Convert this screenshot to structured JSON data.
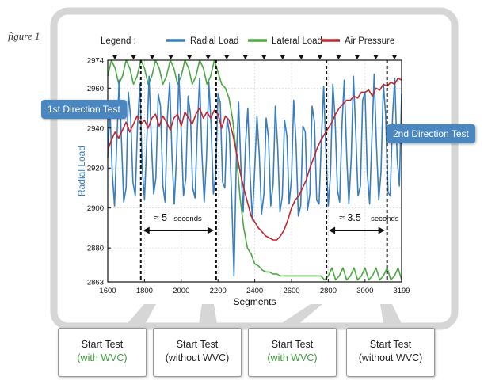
{
  "figure_label": "figure 1",
  "legend_title": "Legend :",
  "callouts": {
    "left": "1st Direction Test",
    "right": "2nd Direction Test"
  },
  "bottom_boxes": [
    {
      "line1": "Start Test",
      "line2": "(with WVC)",
      "variant": "green"
    },
    {
      "line1": "Start Test",
      "line2": "(without WVC)",
      "variant": "dark"
    },
    {
      "line1": "Start Test",
      "line2": "(with WVC)",
      "variant": "green"
    },
    {
      "line1": "Start Test",
      "line2": "(without WVC)",
      "variant": "dark"
    }
  ],
  "colors": {
    "radial": "#3a7ec0",
    "lateral": "#4ba843",
    "air": "#c2272d",
    "frame": "#d6d6d6"
  },
  "chart_data": {
    "type": "line",
    "xlabel": "Segments",
    "ylabel": "Radial Load",
    "xlim": [
      1600,
      3199
    ],
    "ylim": [
      2863,
      2974
    ],
    "x_ticks": [
      1600,
      1800,
      2000,
      2200,
      2400,
      2600,
      2800,
      3000,
      3199
    ],
    "y_ticks": [
      2863,
      2880,
      2900,
      2920,
      2940,
      2960,
      2974
    ],
    "legend_position": "top",
    "grid": true,
    "series": [
      {
        "name": "Radial Load",
        "color": "#3a7ec0",
        "x": [
          1600,
          1612,
          1625,
          1637,
          1650,
          1662,
          1675,
          1687,
          1700,
          1712,
          1725,
          1737,
          1750,
          1762,
          1775,
          1787,
          1800,
          1812,
          1825,
          1837,
          1850,
          1862,
          1875,
          1887,
          1900,
          1912,
          1925,
          1937,
          1950,
          1962,
          1975,
          1987,
          2000,
          2012,
          2025,
          2037,
          2050,
          2062,
          2075,
          2087,
          2100,
          2112,
          2125,
          2137,
          2150,
          2162,
          2175,
          2187,
          2200,
          2212,
          2225,
          2237,
          2250,
          2262,
          2275,
          2287,
          2300,
          2312,
          2325,
          2337,
          2350,
          2362,
          2375,
          2387,
          2400,
          2412,
          2425,
          2437,
          2450,
          2462,
          2475,
          2487,
          2500,
          2512,
          2525,
          2537,
          2550,
          2562,
          2575,
          2587,
          2600,
          2612,
          2625,
          2637,
          2650,
          2662,
          2675,
          2687,
          2700,
          2712,
          2725,
          2737,
          2750,
          2762,
          2775,
          2787,
          2800,
          2812,
          2825,
          2837,
          2850,
          2862,
          2875,
          2887,
          2900,
          2912,
          2925,
          2937,
          2950,
          2962,
          2975,
          2987,
          3000,
          3012,
          3025,
          3037,
          3050,
          3062,
          3075,
          3087,
          3100,
          3112,
          3125,
          3137,
          3150,
          3162,
          3175,
          3187,
          3199
        ],
        "y": [
          2925,
          2950,
          2917,
          2901,
          2935,
          2964,
          2933,
          2903,
          2910,
          2958,
          2945,
          2913,
          2906,
          2941,
          2962,
          2921,
          2904,
          2932,
          2966,
          2934,
          2907,
          2915,
          2957,
          2951,
          2911,
          2903,
          2946,
          2963,
          2925,
          2902,
          2927,
          2967,
          2938,
          2906,
          2915,
          2956,
          2947,
          2910,
          2905,
          2939,
          2965,
          2928,
          2903,
          2924,
          2963,
          2942,
          2907,
          2916,
          2957,
          2953,
          2913,
          2910,
          2945,
          2937,
          2903,
          2866,
          2925,
          2953,
          2920,
          2898,
          2932,
          2950,
          2916,
          2894,
          2920,
          2946,
          2926,
          2897,
          2907,
          2945,
          2935,
          2901,
          2912,
          2951,
          2930,
          2898,
          2906,
          2944,
          2936,
          2902,
          2915,
          2954,
          2932,
          2896,
          2901,
          2941,
          2938,
          2899,
          2907,
          2951,
          2943,
          2904,
          2902,
          2933,
          2961,
          2929,
          2901,
          2917,
          2962,
          2945,
          2909,
          2903,
          2942,
          2964,
          2927,
          2902,
          2925,
          2966,
          2937,
          2906,
          2911,
          2954,
          2958,
          2918,
          2902,
          2934,
          2967,
          2932,
          2904,
          2918,
          2962,
          2947,
          2908,
          2906,
          2946,
          2965,
          2925,
          2911,
          2957
        ]
      },
      {
        "name": "Lateral Load",
        "color": "#4ba843",
        "x": [
          1600,
          1620,
          1640,
          1660,
          1680,
          1700,
          1720,
          1740,
          1760,
          1780,
          1800,
          1820,
          1840,
          1860,
          1880,
          1900,
          1920,
          1940,
          1960,
          1980,
          2000,
          2020,
          2040,
          2060,
          2080,
          2100,
          2120,
          2140,
          2160,
          2180,
          2200,
          2220,
          2240,
          2260,
          2280,
          2300,
          2320,
          2340,
          2360,
          2380,
          2400,
          2420,
          2440,
          2460,
          2480,
          2500,
          2520,
          2540,
          2560,
          2580,
          2600,
          2620,
          2640,
          2660,
          2680,
          2700,
          2720,
          2740,
          2760,
          2780,
          2800,
          2820,
          2840,
          2860,
          2880,
          2900,
          2920,
          2940,
          2960,
          2980,
          3000,
          3020,
          3040,
          3060,
          3080,
          3100,
          3120,
          3140,
          3160,
          3180,
          3199
        ],
        "y": [
          2966,
          2974,
          2970,
          2962,
          2966,
          2974,
          2970,
          2962,
          2966,
          2974,
          2970,
          2962,
          2966,
          2974,
          2970,
          2962,
          2966,
          2974,
          2970,
          2962,
          2966,
          2974,
          2970,
          2962,
          2966,
          2974,
          2970,
          2962,
          2966,
          2974,
          2968,
          2962,
          2960,
          2955,
          2944,
          2927,
          2905,
          2890,
          2880,
          2877,
          2872,
          2871,
          2869,
          2868,
          2868,
          2867,
          2867,
          2866,
          2866,
          2866,
          2866,
          2866,
          2866,
          2866,
          2866,
          2866,
          2866,
          2866,
          2866,
          2864,
          2866,
          2870,
          2864,
          2866,
          2870,
          2864,
          2866,
          2870,
          2864,
          2866,
          2870,
          2864,
          2866,
          2870,
          2864,
          2866,
          2870,
          2864,
          2866,
          2870,
          2864
        ]
      },
      {
        "name": "Air Pressure",
        "color": "#c2272d",
        "x": [
          1600,
          1620,
          1640,
          1660,
          1680,
          1700,
          1720,
          1740,
          1760,
          1780,
          1800,
          1820,
          1840,
          1860,
          1880,
          1900,
          1920,
          1940,
          1960,
          1980,
          2000,
          2020,
          2040,
          2060,
          2080,
          2100,
          2120,
          2140,
          2160,
          2180,
          2200,
          2220,
          2240,
          2260,
          2280,
          2300,
          2320,
          2340,
          2360,
          2380,
          2400,
          2420,
          2440,
          2460,
          2480,
          2500,
          2520,
          2540,
          2560,
          2580,
          2600,
          2620,
          2640,
          2660,
          2680,
          2700,
          2720,
          2740,
          2760,
          2780,
          2800,
          2820,
          2840,
          2860,
          2880,
          2900,
          2920,
          2940,
          2960,
          2980,
          3000,
          3020,
          3040,
          3060,
          3080,
          3100,
          3120,
          3140,
          3160,
          3180,
          3199
        ],
        "y": [
          2929,
          2934,
          2938,
          2935,
          2939,
          2943,
          2938,
          2942,
          2946,
          2942,
          2944,
          2940,
          2945,
          2947,
          2941,
          2946,
          2943,
          2939,
          2945,
          2947,
          2941,
          2948,
          2945,
          2942,
          2947,
          2950,
          2945,
          2948,
          2945,
          2949,
          2947,
          2940,
          2946,
          2944,
          2937,
          2928,
          2918,
          2910,
          2903,
          2896,
          2893,
          2890,
          2888,
          2886,
          2885,
          2884,
          2884,
          2886,
          2889,
          2894,
          2900,
          2904,
          2906,
          2910,
          2914,
          2920,
          2925,
          2930,
          2934,
          2937,
          2940,
          2943,
          2947,
          2950,
          2952,
          2954,
          2954,
          2956,
          2955,
          2958,
          2958,
          2959,
          2956,
          2960,
          2959,
          2962,
          2961,
          2963,
          2962,
          2965,
          2964
        ]
      }
    ],
    "markers": [
      {
        "x1": 1780,
        "x2": 2190,
        "label": "≈ 5",
        "unit": "seconds"
      },
      {
        "x1": 2790,
        "x2": 3120,
        "label": "≈ 3.5",
        "unit": "seconds"
      }
    ],
    "vlines": [
      1780,
      2190,
      2790,
      3120
    ]
  }
}
